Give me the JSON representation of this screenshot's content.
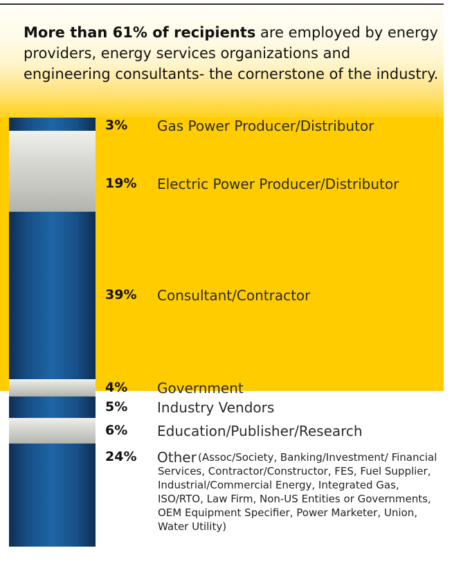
{
  "headline": {
    "bold": "More than 61% of recipients",
    "rest": " are employed by energy providers, energy services organizations and engineering consultants- the cornerstone of the industry."
  },
  "colors": {
    "highlight": "#ffcc00",
    "blue": "#1e66a6",
    "gray": "#c6c6c1"
  },
  "chart_data": {
    "type": "bar",
    "stacked": true,
    "orientation": "vertical",
    "unit": "%",
    "categories": [
      "Gas Power Producer/Distributor",
      "Electric Power Producer/Distributor",
      "Consultant/Contractor",
      "Government",
      "Industry Vendors",
      "Education/Publisher/Research",
      "Other"
    ],
    "values": [
      3,
      19,
      39,
      4,
      5,
      6,
      24
    ],
    "labels": [
      "3%",
      "19%",
      "39%",
      "4%",
      "5%",
      "6%",
      "24%"
    ],
    "other_detail": "(Assoc/Society, Banking/Investment/ Financial Services, Contractor/Constructor, FES, Fuel Supplier, Industrial/Commercial Energy, Integrated Gas, ISO/RTO, Law Firm, Non-US Entities or Governments, OEM Equipment Specifier, Power Marketer, Union, Water Utility)"
  }
}
